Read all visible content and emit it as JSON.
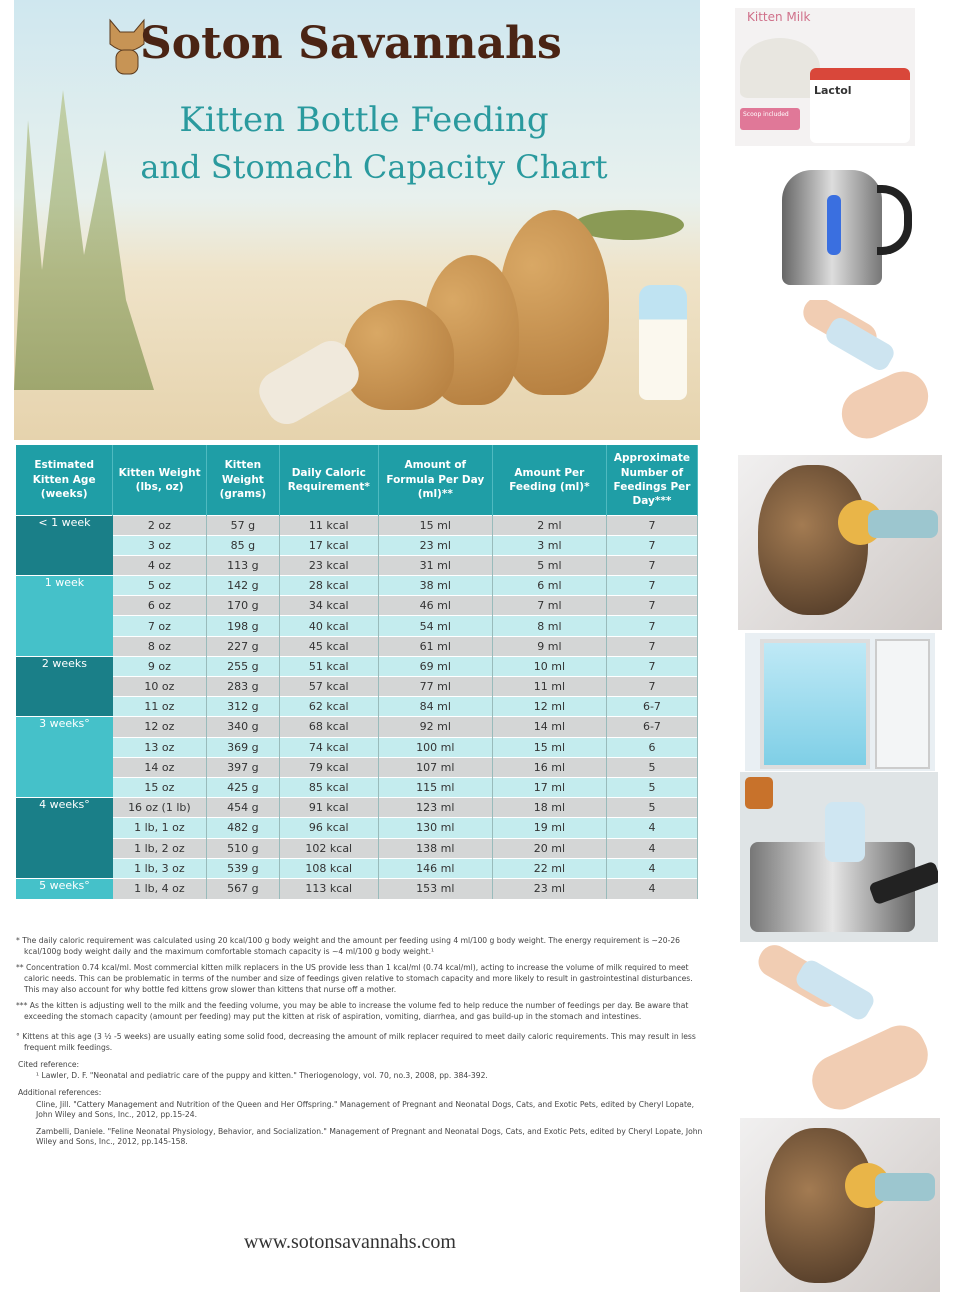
{
  "header": {
    "brand": "Soton Savannahs",
    "title_line1": "Kitten Bottle Feeding",
    "title_line2": "and Stomach Capacity Chart"
  },
  "table": {
    "headers": [
      "Estimated Kitten Age (weeks)",
      "Kitten Weight (lbs, oz)",
      "Kitten Weight (grams)",
      "Daily Caloric Requirement*",
      "Amount of Formula Per Day (ml)**",
      "Amount Per Feeding (ml)*",
      "Approximate Number of Feedings Per Day***"
    ],
    "age_groups": [
      "< 1 week",
      "1 week",
      "2 weeks",
      "3 weeks°",
      "4 weeks°",
      "5 weeks°"
    ],
    "rows": [
      [
        "2 oz",
        "57 g",
        "11 kcal",
        "15 ml",
        "2 ml",
        "7"
      ],
      [
        "3 oz",
        "85 g",
        "17 kcal",
        "23 ml",
        "3 ml",
        "7"
      ],
      [
        "4 oz",
        "113 g",
        "23 kcal",
        "31 ml",
        "5 ml",
        "7"
      ],
      [
        "5 oz",
        "142 g",
        "28 kcal",
        "38 ml",
        "6 ml",
        "7"
      ],
      [
        "6 oz",
        "170 g",
        "34 kcal",
        "46 ml",
        "7 ml",
        "7"
      ],
      [
        "7 oz",
        "198 g",
        "40 kcal",
        "54 ml",
        "8 ml",
        "7"
      ],
      [
        "8 oz",
        "227 g",
        "45 kcal",
        "61 ml",
        "9 ml",
        "7"
      ],
      [
        "9 oz",
        "255 g",
        "51 kcal",
        "69 ml",
        "10 ml",
        "7"
      ],
      [
        "10 oz",
        "283 g",
        "57 kcal",
        "77 ml",
        "11 ml",
        "7"
      ],
      [
        "11 oz",
        "312 g",
        "62 kcal",
        "84 ml",
        "12 ml",
        "6-7"
      ],
      [
        "12 oz",
        "340 g",
        "68 kcal",
        "92 ml",
        "14 ml",
        "6-7"
      ],
      [
        "13 oz",
        "369 g",
        "74 kcal",
        "100 ml",
        "15 ml",
        "6"
      ],
      [
        "14 oz",
        "397 g",
        "79 kcal",
        "107 ml",
        "16 ml",
        "5"
      ],
      [
        "15 oz",
        "425 g",
        "85 kcal",
        "115 ml",
        "17 ml",
        "5"
      ],
      [
        "16 oz (1 lb)",
        "454 g",
        "91 kcal",
        "123 ml",
        "18 ml",
        "5"
      ],
      [
        "1 lb, 1 oz",
        "482 g",
        "96 kcal",
        "130 ml",
        "19 ml",
        "4"
      ],
      [
        "1 lb, 2 oz",
        "510 g",
        "102 kcal",
        "138 ml",
        "20 ml",
        "4"
      ],
      [
        "1 lb, 3 oz",
        "539 g",
        "108 kcal",
        "146 ml",
        "22 ml",
        "4"
      ],
      [
        "1 lb, 4 oz",
        "567 g",
        "113 kcal",
        "153 ml",
        "23 ml",
        "4"
      ]
    ]
  },
  "notes": {
    "n1": "* The daily caloric requirement was calculated using 20 kcal/100 g body weight and the amount per feeding using 4 ml/100 g body weight. The energy requirement is ~20-26 kcal/100g body weight daily and the maximum comfortable stomach capacity is ~4 ml/100 g body weight.¹",
    "n2": "** Concentration 0.74 kcal/ml. Most commercial kitten milk replacers in the US provide less than 1 kcal/ml (0.74 kcal/ml), acting to increase the volume of milk required to meet caloric needs. This can be problematic in terms of the number and size of feedings given relative to stomach capacity and more likely to result in gastrointestinal disturbances. This may also account for why bottle fed kittens grow slower than kittens that nurse off a mother.",
    "n3": "*** As the kitten is adjusting well to the milk and the feeding volume, you may be able to increase the volume fed to help reduce the number of feedings per day. Be aware that exceeding the stomach capacity (amount per feeding) may put the kitten at risk of aspiration, vomiting, diarrhea, and gas build-up in the stomach and intestines.",
    "n4": "° Kittens at this age (3 ½ -5 weeks) are usually eating some solid food, decreasing the amount of milk replacer required to meet daily caloric requirements. This may result in less frequent milk feedings.",
    "cited_heading": "Cited reference:",
    "cited": "¹ Lawler, D. F. \"Neonatal and pediatric care of the puppy and kitten.\" Theriogenology, vol. 70, no.3, 2008, pp. 384-392.",
    "additional_heading": "Additional references:",
    "ref1": "Cline, Jill. \"Cattery Management and Nutrition of the Queen and Her Offspring.\" Management of Pregnant and Neonatal Dogs, Cats, and Exotic Pets, edited by Cheryl Lopate, John Wiley and Sons, Inc., 2012, pp.15-24.",
    "ref2": "Zambelli, Daniele. \"Feline Neonatal Physiology, Behavior, and Socialization.\" Management of Pregnant and Neonatal Dogs, Cats, and Exotic Pets, edited by Cheryl Lopate, John Wiley and Sons, Inc., 2012, pp.145-158."
  },
  "footer": {
    "url": "www.sotonsavannahs.com"
  },
  "side": {
    "milk_label": "Kitten Milk",
    "product_name": "Lactol",
    "scoop_badge": "Scoop included"
  },
  "colors": {
    "teal_header": "#1f9ea6",
    "teal_dark": "#1a7f88",
    "teal_light": "#45c1c9",
    "brand_brown": "#4a2414",
    "title_teal": "#2a9a9e"
  }
}
